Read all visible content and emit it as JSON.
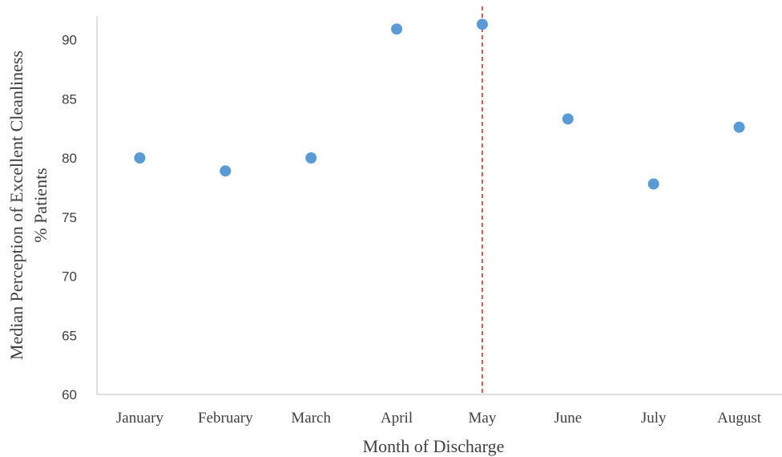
{
  "chart_data": {
    "type": "scatter",
    "title": "",
    "xlabel": "Month of Discharge",
    "ylabel_line1": "Median Perception of Excellent Cleanliness",
    "ylabel_line2": "% Patients",
    "categories": [
      "January",
      "February",
      "March",
      "April",
      "May",
      "June",
      "July",
      "August"
    ],
    "series": [
      {
        "values": [
          80.0,
          78.9,
          80.0,
          90.9,
          91.3,
          83.3,
          77.8,
          82.6
        ],
        "color": "#5b9bd5"
      }
    ],
    "ylim": [
      60,
      92
    ],
    "yticks": [
      60,
      65,
      70,
      75,
      80,
      85,
      90
    ],
    "grid": false,
    "reference_line": {
      "category": "May",
      "color": "#c00000",
      "style": "dashed"
    }
  }
}
